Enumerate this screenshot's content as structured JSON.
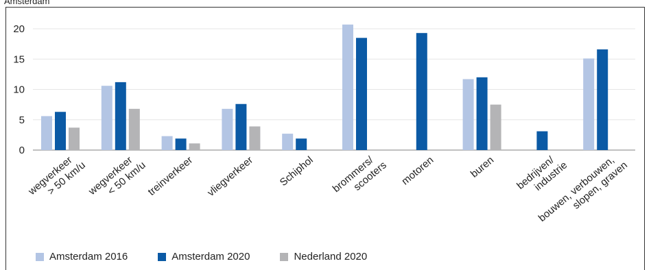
{
  "caption": "Amsterdam",
  "chart_data": {
    "type": "bar",
    "categories": [
      [
        "wegverkeer",
        "> 50 km/u"
      ],
      [
        "wegverkeer",
        "< 50 km/u"
      ],
      [
        "treinverkeer"
      ],
      [
        "vliegverkeer"
      ],
      [
        "Schiphol"
      ],
      [
        "brommers/",
        "scooters"
      ],
      [
        "motoren"
      ],
      [
        "buren"
      ],
      [
        "bedrijven/",
        "industrie"
      ],
      [
        "bouwen, verbouwen,",
        "slopen, graven"
      ]
    ],
    "series": [
      {
        "name": "Amsterdam 2016",
        "color": "#b3c5e4",
        "values": [
          5.6,
          10.6,
          2.3,
          6.8,
          2.7,
          20.7,
          null,
          11.7,
          null,
          15.1
        ]
      },
      {
        "name": "Amsterdam 2020",
        "color": "#0b5aa5",
        "values": [
          6.3,
          11.2,
          1.9,
          7.6,
          1.9,
          18.5,
          19.3,
          12.0,
          3.1,
          16.6
        ]
      },
      {
        "name": "Nederland 2020",
        "color": "#b4b4b6",
        "values": [
          3.7,
          6.8,
          1.1,
          3.9,
          null,
          null,
          null,
          7.5,
          null,
          null
        ]
      }
    ],
    "ylim": [
      0,
      22
    ],
    "yticks": [
      0,
      5,
      10,
      15,
      20
    ],
    "grid": true
  }
}
